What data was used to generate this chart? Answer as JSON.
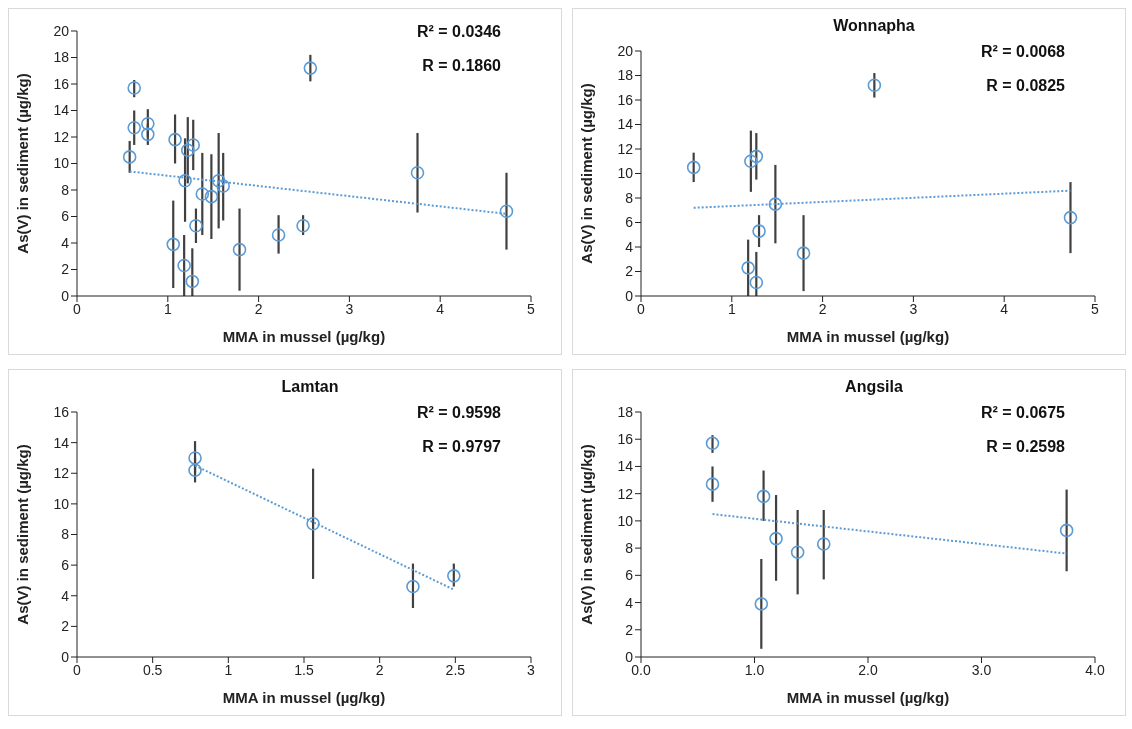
{
  "chart_data": [
    {
      "type": "scatter",
      "xlabel": "MMA in mussel (µg/kg)",
      "ylabel": "As(V) in sediment (µg/kg)",
      "annotations": [
        "R² = 0.0346",
        "R = 0.1860"
      ],
      "xlim": [
        0,
        5
      ],
      "xticks": [
        0,
        1,
        2,
        3,
        4,
        5
      ],
      "ylim": [
        0,
        20
      ],
      "yticks": [
        0,
        2,
        4,
        6,
        8,
        10,
        12,
        14,
        16,
        18,
        20
      ],
      "grid": false,
      "marker": "circle",
      "series": [
        {
          "type": "scatter",
          "color": "#5b9bd5",
          "x": [
            0.58,
            0.63,
            0.63,
            0.78,
            0.78,
            1.08,
            1.06,
            1.19,
            1.18,
            1.22,
            1.28,
            1.27,
            1.31,
            1.38,
            1.48,
            1.56,
            1.61,
            1.79,
            2.22,
            2.49,
            2.57,
            3.75,
            4.73
          ],
          "values": [
            10.5,
            15.7,
            12.7,
            13.0,
            12.2,
            11.8,
            3.9,
            8.7,
            2.3,
            11.0,
            11.4,
            1.1,
            5.3,
            7.7,
            7.5,
            8.7,
            8.3,
            3.5,
            4.6,
            5.3,
            17.2,
            9.3,
            6.4
          ],
          "errors": [
            [
              9.3,
              11.7
            ],
            [
              15.0,
              16.3
            ],
            [
              11.4,
              14.0
            ],
            [
              12.0,
              14.1
            ],
            [
              11.4,
              13.0
            ],
            [
              10.0,
              13.7
            ],
            [
              0.6,
              7.2
            ],
            [
              5.6,
              11.9
            ],
            [
              0,
              4.6
            ],
            [
              8.5,
              13.5
            ],
            [
              9.5,
              13.3
            ],
            [
              0,
              3.6
            ],
            [
              4.0,
              6.6
            ],
            [
              4.6,
              10.8
            ],
            [
              4.3,
              10.7
            ],
            [
              5.1,
              12.3
            ],
            [
              5.7,
              10.8
            ],
            [
              0.4,
              6.6
            ],
            [
              3.2,
              6.1
            ],
            [
              4.6,
              6.1
            ],
            [
              16.2,
              18.2
            ],
            [
              6.3,
              12.3
            ],
            [
              3.5,
              9.3
            ]
          ]
        },
        {
          "type": "line",
          "color": "#5b9bd5",
          "line_style": "dotted",
          "marker": "none",
          "x": [
            0.58,
            4.73
          ],
          "values": [
            9.4,
            6.2
          ]
        }
      ]
    },
    {
      "type": "scatter",
      "title": "Wonnapha",
      "xlabel": "MMA in mussel (µg/kg)",
      "ylabel": "As(V) in sediment (µg/kg)",
      "annotations": [
        "R² = 0.0068",
        "R = 0.0825"
      ],
      "xlim": [
        0,
        5
      ],
      "xticks": [
        0,
        1,
        2,
        3,
        4,
        5
      ],
      "ylim": [
        0,
        20
      ],
      "yticks": [
        0,
        2,
        4,
        6,
        8,
        10,
        12,
        14,
        16,
        18,
        20
      ],
      "grid": false,
      "marker": "circle",
      "series": [
        {
          "type": "scatter",
          "color": "#5b9bd5",
          "x": [
            0.58,
            1.21,
            1.27,
            1.48,
            1.3,
            1.18,
            1.27,
            1.79,
            2.57,
            4.73
          ],
          "values": [
            10.5,
            11.0,
            11.4,
            7.5,
            5.3,
            2.3,
            1.1,
            3.5,
            17.2,
            6.4
          ],
          "errors": [
            [
              9.3,
              11.7
            ],
            [
              8.5,
              13.5
            ],
            [
              9.5,
              13.3
            ],
            [
              4.3,
              10.7
            ],
            [
              4.0,
              6.6
            ],
            [
              0,
              4.6
            ],
            [
              0,
              3.6
            ],
            [
              0.4,
              6.6
            ],
            [
              16.2,
              18.2
            ],
            [
              3.5,
              9.3
            ]
          ]
        },
        {
          "type": "line",
          "color": "#5b9bd5",
          "line_style": "dotted",
          "marker": "none",
          "x": [
            0.58,
            4.73
          ],
          "values": [
            7.2,
            8.6
          ]
        }
      ]
    },
    {
      "type": "scatter",
      "title": "Lamtan",
      "xlabel": "MMA in mussel (µg/kg)",
      "ylabel": "As(V) in sediment (µg/kg)",
      "annotations": [
        "R² = 0.9598",
        "R = 0.9797"
      ],
      "xlim": [
        0,
        3
      ],
      "xticks": [
        0,
        0.5,
        1,
        1.5,
        2,
        2.5,
        3
      ],
      "ylim": [
        0,
        16
      ],
      "yticks": [
        0,
        2,
        4,
        6,
        8,
        10,
        12,
        14,
        16
      ],
      "grid": false,
      "marker": "circle",
      "series": [
        {
          "type": "scatter",
          "color": "#5b9bd5",
          "x": [
            0.78,
            0.78,
            1.56,
            2.22,
            2.49
          ],
          "values": [
            13.0,
            12.2,
            8.7,
            4.6,
            5.3
          ],
          "errors": [
            [
              12.0,
              14.1
            ],
            [
              11.4,
              13.0
            ],
            [
              5.1,
              12.3
            ],
            [
              3.2,
              6.1
            ],
            [
              4.6,
              6.1
            ]
          ]
        },
        {
          "type": "line",
          "color": "#5b9bd5",
          "line_style": "dotted",
          "marker": "none",
          "x": [
            0.78,
            2.49
          ],
          "values": [
            12.5,
            4.4
          ]
        }
      ]
    },
    {
      "type": "scatter",
      "title": "Angsila",
      "xlabel": "MMA in mussel (µg/kg)",
      "ylabel": "As(V) in sediment (µg/kg)",
      "annotations": [
        "R² = 0.0675",
        "R = 0.2598"
      ],
      "xlim": [
        0,
        4
      ],
      "xticks": [
        {
          "value": 0,
          "label": "0.0"
        },
        {
          "value": 1,
          "label": "1.0"
        },
        {
          "value": 2,
          "label": "2.0"
        },
        {
          "value": 3,
          "label": "3.0"
        },
        {
          "value": 4,
          "label": "4.0"
        }
      ],
      "ylim": [
        0,
        18
      ],
      "yticks": [
        0,
        2,
        4,
        6,
        8,
        10,
        12,
        14,
        16,
        18
      ],
      "grid": false,
      "marker": "circle",
      "series": [
        {
          "type": "scatter",
          "color": "#5b9bd5",
          "x": [
            0.63,
            0.63,
            1.08,
            1.06,
            1.19,
            1.38,
            1.61,
            3.75
          ],
          "values": [
            15.7,
            12.7,
            11.8,
            3.9,
            8.7,
            7.7,
            8.3,
            9.3
          ],
          "errors": [
            [
              15.0,
              16.3
            ],
            [
              11.4,
              14.0
            ],
            [
              10.0,
              13.7
            ],
            [
              0.6,
              7.2
            ],
            [
              5.6,
              11.9
            ],
            [
              4.6,
              10.8
            ],
            [
              5.7,
              10.8
            ],
            [
              6.3,
              12.3
            ]
          ]
        },
        {
          "type": "line",
          "color": "#5b9bd5",
          "line_style": "dotted",
          "marker": "none",
          "x": [
            0.63,
            3.75
          ],
          "values": [
            10.5,
            7.6
          ]
        }
      ]
    }
  ]
}
